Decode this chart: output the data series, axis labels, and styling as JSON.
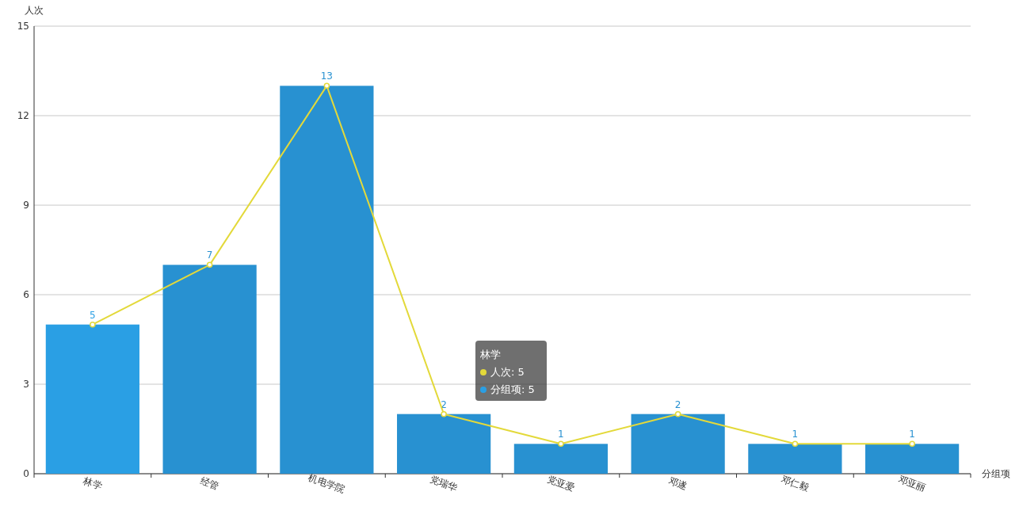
{
  "chart_data": {
    "type": "bar",
    "ylabel": "人次",
    "xlabel": "分组项",
    "categories": [
      "林学",
      "经管",
      "机电学院",
      "党瑞华",
      "党亚爱",
      "邓遂",
      "邓仁毅",
      "邓亚丽"
    ],
    "series": [
      {
        "value_labels": [
          "5",
          "7",
          "13",
          "2",
          "1",
          "2",
          "1",
          "1"
        ],
        "colors": [
          "#2a9fe4",
          "#2891d1",
          "#2891d1",
          "#2891d1",
          "#2891d1",
          "#2891d1",
          "#2891d1",
          "#2891d1"
        ],
        "values": [
          5,
          7,
          13,
          2,
          1,
          2,
          1,
          1
        ]
      },
      {
        "type": "line",
        "color": "#e3d93a",
        "marker": "circle",
        "values": [
          5,
          7,
          13,
          2,
          1,
          2,
          1,
          1
        ]
      }
    ],
    "ylim": [
      0,
      15
    ],
    "yticks": [
      0,
      3,
      6,
      9,
      12,
      15
    ],
    "grid": "y",
    "annotations": [
      "林学",
      "人次: 5",
      "分组项: 5"
    ]
  }
}
